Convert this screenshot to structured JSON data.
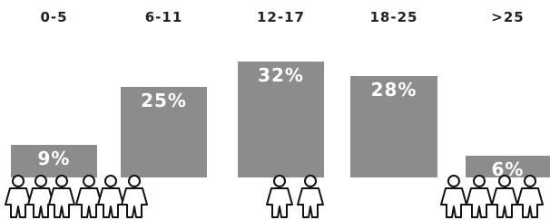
{
  "chart_data": {
    "type": "bar",
    "categories": [
      "0-5",
      "6-11",
      "12-17",
      "18-25",
      ">25"
    ],
    "values": [
      9,
      25,
      32,
      28,
      6
    ],
    "value_labels": [
      "9%",
      "25%",
      "32%",
      "28%",
      "6%"
    ],
    "color": "#8c8c8c"
  }
}
